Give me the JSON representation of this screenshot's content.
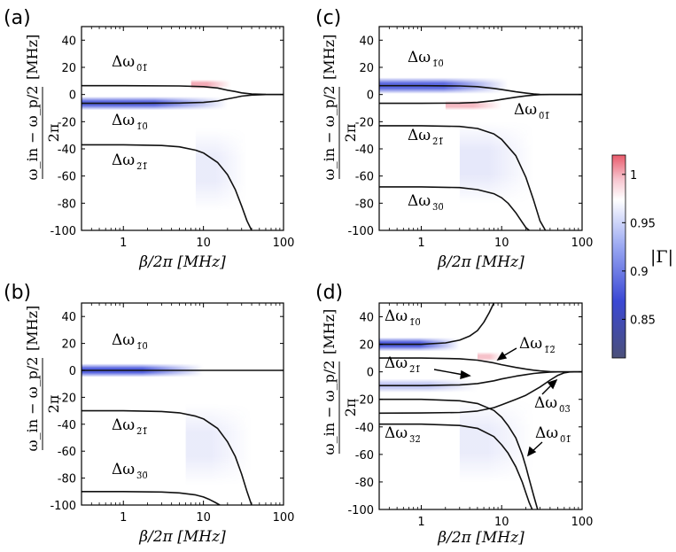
{
  "chart_data": [
    {
      "id": "a",
      "type": "heatmap",
      "panel_label": "(a)",
      "xlabel": "β/2π [MHz]",
      "ylabel_numerator": "ω_in − ω_p/2",
      "ylabel_denominator": "2π",
      "ylabel_unit": "[MHz]",
      "xscale": "log",
      "xlim": [
        0.3,
        100
      ],
      "ylim": [
        -100,
        50
      ],
      "xticks": [
        {
          "v": 1,
          "label": "1"
        },
        {
          "v": 10,
          "label": "10"
        },
        {
          "v": 100,
          "label": "100"
        }
      ],
      "yticks": [
        -100,
        -80,
        -60,
        -40,
        -20,
        0,
        20,
        40
      ],
      "curves": [
        {
          "name": "dw01",
          "x": [
            0.3,
            1,
            5,
            10,
            15,
            20,
            25,
            30,
            40,
            60,
            100
          ],
          "y": [
            6.5,
            6.5,
            6.3,
            5.8,
            4.8,
            3.2,
            2.2,
            1.2,
            0.4,
            0.05,
            0
          ]
        },
        {
          "name": "dw10",
          "x": [
            0.3,
            1,
            5,
            10,
            15,
            20,
            25,
            30,
            40,
            60,
            100
          ],
          "y": [
            -6.5,
            -6.5,
            -6.3,
            -5.8,
            -4.8,
            -3.2,
            -2.2,
            -1.2,
            -0.4,
            -0.05,
            0
          ]
        },
        {
          "name": "dw21",
          "x": [
            0.3,
            1,
            3,
            5,
            8,
            10,
            15,
            20,
            25,
            30,
            35,
            40
          ],
          "y": [
            -37,
            -37,
            -37.5,
            -38.5,
            -41,
            -43,
            -50,
            -59,
            -70,
            -82,
            -93,
            -100
          ]
        }
      ],
      "bands": [
        {
          "color": "blue",
          "x0": 0.3,
          "x1": 20,
          "y": -6.5,
          "halfwidth": 5,
          "strength": 0.8,
          "fade": 0.5
        },
        {
          "color": "blue",
          "x0": 8,
          "x1": 35,
          "y": -55,
          "halfwidth": 30,
          "strength": 0.1,
          "fade": 0.6
        },
        {
          "color": "red",
          "x0": 7,
          "x1": 22,
          "y": 7.5,
          "halfwidth": 3.5,
          "strength": 0.55,
          "fade": 0.6
        }
      ],
      "annotations": [
        {
          "base": "Δω",
          "sub": "0̃1̃"
        },
        {
          "base": "Δω",
          "sub": "1̃0̃"
        },
        {
          "base": "Δω",
          "sub": "2̃1̃"
        }
      ]
    },
    {
      "id": "b",
      "type": "heatmap",
      "panel_label": "(b)",
      "xlabel": "β/2π [MHz]",
      "ylabel_numerator": "ω_in − ω_p/2",
      "ylabel_denominator": "2π",
      "ylabel_unit": "[MHz]",
      "xscale": "log",
      "xlim": [
        0.3,
        100
      ],
      "ylim": [
        -100,
        50
      ],
      "xticks": [
        {
          "v": 1,
          "label": "1"
        },
        {
          "v": 10,
          "label": "10"
        },
        {
          "v": 100,
          "label": "100"
        }
      ],
      "yticks": [
        -100,
        -80,
        -60,
        -40,
        -20,
        0,
        20,
        40
      ],
      "curves": [
        {
          "name": "dw10",
          "x": [
            0.3,
            1,
            10,
            50,
            100
          ],
          "y": [
            0,
            0,
            0,
            0,
            0
          ]
        },
        {
          "name": "dw21",
          "x": [
            0.3,
            1,
            3,
            5,
            8,
            10,
            15,
            20,
            25,
            30,
            35,
            40
          ],
          "y": [
            -30,
            -30,
            -30.5,
            -31.5,
            -34,
            -36,
            -43,
            -53,
            -64,
            -77,
            -90,
            -100
          ]
        },
        {
          "name": "dw30",
          "x": [
            0.3,
            1,
            3,
            5,
            8,
            10,
            12,
            14,
            16
          ],
          "y": [
            -90,
            -90,
            -90.3,
            -91,
            -92.5,
            -94,
            -96,
            -98,
            -100
          ]
        }
      ],
      "bands": [
        {
          "color": "blue",
          "x0": 0.3,
          "x1": 10,
          "y": 0,
          "halfwidth": 5,
          "strength": 0.85,
          "fade": 0.5
        },
        {
          "color": "blue",
          "x0": 6,
          "x1": 40,
          "y": -55,
          "halfwidth": 30,
          "strength": 0.1,
          "fade": 0.6
        }
      ],
      "annotations": [
        {
          "base": "Δω",
          "sub": "1̃0̃"
        },
        {
          "base": "Δω",
          "sub": "2̃1̃"
        },
        {
          "base": "Δω",
          "sub": "3̃0̃"
        }
      ]
    },
    {
      "id": "c",
      "type": "heatmap",
      "panel_label": "(c)",
      "xlabel": "β/2π [MHz]",
      "ylabel_numerator": "ω_in − ω_p/2",
      "ylabel_denominator": "2π",
      "ylabel_unit": "[MHz]",
      "xscale": "log",
      "xlim": [
        0.3,
        100
      ],
      "ylim": [
        -100,
        50
      ],
      "xticks": [
        {
          "v": 1,
          "label": "1"
        },
        {
          "v": 10,
          "label": "10"
        },
        {
          "v": 100,
          "label": "100"
        }
      ],
      "yticks": [
        -100,
        -80,
        -60,
        -40,
        -20,
        0,
        20,
        40
      ],
      "curves": [
        {
          "name": "dw10",
          "x": [
            0.3,
            1,
            3,
            5,
            8,
            10,
            15,
            20,
            25,
            30,
            40,
            100
          ],
          "y": [
            6.5,
            6.5,
            6.3,
            5.8,
            4.5,
            3.6,
            2,
            1,
            0.4,
            0.1,
            0,
            0
          ]
        },
        {
          "name": "dw01",
          "x": [
            0.3,
            1,
            3,
            5,
            8,
            10,
            15,
            20,
            25,
            30,
            40,
            100
          ],
          "y": [
            -6.5,
            -6.5,
            -6.3,
            -5.8,
            -4.5,
            -3.6,
            -2,
            -1,
            -0.4,
            -0.1,
            0,
            0
          ]
        },
        {
          "name": "dw21",
          "x": [
            0.3,
            1,
            3,
            5,
            8,
            10,
            15,
            20,
            25,
            30,
            35
          ],
          "y": [
            -23,
            -23,
            -23.5,
            -25,
            -29,
            -33,
            -45,
            -61,
            -78,
            -93,
            -100
          ]
        },
        {
          "name": "dw30",
          "x": [
            0.3,
            1,
            3,
            5,
            8,
            10,
            12,
            15,
            18,
            20,
            22
          ],
          "y": [
            -68,
            -68,
            -68.5,
            -70,
            -73,
            -76,
            -80,
            -87,
            -94,
            -98,
            -100
          ]
        }
      ],
      "bands": [
        {
          "color": "blue",
          "x0": 0.3,
          "x1": 12,
          "y": 6.5,
          "halfwidth": 6,
          "strength": 0.8,
          "fade": 0.5
        },
        {
          "color": "blue",
          "x0": 3,
          "x1": 25,
          "y": -50,
          "halfwidth": 30,
          "strength": 0.12,
          "fade": 0.6
        },
        {
          "color": "red",
          "x0": 2,
          "x1": 10,
          "y": -8,
          "halfwidth": 3.5,
          "strength": 0.45,
          "fade": 0.5
        }
      ],
      "annotations": [
        {
          "base": "Δω",
          "sub": "1̃0̃"
        },
        {
          "base": "Δω",
          "sub": "0̃1̃"
        },
        {
          "base": "Δω",
          "sub": "2̃1̃"
        },
        {
          "base": "Δω",
          "sub": "3̃0̃"
        }
      ]
    },
    {
      "id": "d",
      "type": "heatmap",
      "panel_label": "(d)",
      "xlabel": "β/2π [MHz]",
      "ylabel_numerator": "ω_in − ω_p/2",
      "ylabel_denominator": "2π",
      "ylabel_unit": "[MHz]",
      "xscale": "log",
      "xlim": [
        0.3,
        100
      ],
      "ylim": [
        -100,
        50
      ],
      "xticks": [
        {
          "v": 1,
          "label": "1"
        },
        {
          "v": 10,
          "label": "10"
        },
        {
          "v": 100,
          "label": "100"
        }
      ],
      "yticks": [
        -100,
        -80,
        -60,
        -40,
        -20,
        0,
        20,
        40
      ],
      "curves": [
        {
          "name": "dw10",
          "x": [
            0.3,
            1,
            2,
            3,
            4,
            5,
            6,
            7,
            8
          ],
          "y": [
            20,
            20,
            21,
            23,
            26,
            30,
            36,
            43,
            50
          ]
        },
        {
          "name": "dw12",
          "x": [
            0.3,
            1,
            3,
            5,
            8,
            10,
            15,
            20,
            25,
            30,
            40,
            50,
            60,
            100
          ],
          "y": [
            10,
            10,
            9.5,
            8.5,
            6.5,
            5.2,
            3.2,
            2,
            1.2,
            0.7,
            0.2,
            0,
            0,
            0
          ]
        },
        {
          "name": "dw21",
          "x": [
            0.3,
            1,
            3,
            5,
            8,
            10,
            15,
            20,
            25,
            30,
            40,
            50,
            60,
            100
          ],
          "y": [
            -10,
            -10,
            -9.5,
            -8.5,
            -6.5,
            -5.2,
            -3.2,
            -2,
            -1.2,
            -0.7,
            -0.2,
            0,
            0,
            0
          ]
        },
        {
          "name": "dw03",
          "x": [
            0.3,
            1,
            3,
            5,
            8,
            10,
            15,
            20,
            30,
            40,
            50,
            60,
            70,
            80,
            100
          ],
          "y": [
            -30,
            -29.9,
            -29.5,
            -28.5,
            -26,
            -24,
            -20,
            -17,
            -11,
            -6,
            -2.5,
            -0.7,
            -0.1,
            0,
            0
          ]
        },
        {
          "name": "dw32",
          "x": [
            0.3,
            1,
            3,
            5,
            8,
            10,
            12,
            15,
            18,
            20,
            22,
            25,
            28
          ],
          "y": [
            -20,
            -20,
            -21,
            -23,
            -28,
            -33,
            -39,
            -48,
            -60,
            -69,
            -78,
            -90,
            -100
          ]
        },
        {
          "name": "dw01",
          "x": [
            0.3,
            1,
            3,
            5,
            8,
            10,
            12,
            15,
            18,
            20,
            22,
            24
          ],
          "y": [
            -38,
            -38,
            -39,
            -41,
            -47,
            -53,
            -59,
            -69,
            -80,
            -88,
            -95,
            -100
          ]
        }
      ],
      "bands": [
        {
          "color": "blue",
          "x0": 0.3,
          "x1": 3,
          "y": 20,
          "halfwidth": 5,
          "strength": 0.85,
          "fade": 0.5
        },
        {
          "color": "blue",
          "x0": 0.3,
          "x1": 5,
          "y": -10,
          "halfwidth": 5,
          "strength": 0.3,
          "fade": 0.5
        },
        {
          "color": "blue",
          "x0": 3,
          "x1": 25,
          "y": -50,
          "halfwidth": 30,
          "strength": 0.1,
          "fade": 0.6
        },
        {
          "color": "red",
          "x0": 5,
          "x1": 10,
          "y": 11,
          "halfwidth": 3.5,
          "strength": 0.4,
          "fade": 0.5
        }
      ],
      "annotations": [
        {
          "base": "Δω",
          "sub": "1̃0̃"
        },
        {
          "base": "Δω",
          "sub": "1̃2̃"
        },
        {
          "base": "Δω",
          "sub": "2̃1̃"
        },
        {
          "base": "Δω",
          "sub": "0̃3̃"
        },
        {
          "base": "Δω",
          "sub": "3̃2̃"
        },
        {
          "base": "Δω",
          "sub": "0̃1̃"
        }
      ]
    }
  ],
  "colorbar": {
    "label": "|Γ|",
    "ticks": [
      "1",
      "0.95",
      "0.9",
      "0.85"
    ],
    "tick_values": [
      1,
      0.95,
      0.9,
      0.85
    ],
    "range": [
      0.81,
      1.02
    ],
    "stops": [
      "#e85a6b",
      "#f7c5cf",
      "#ffffff",
      "#9aa8f2",
      "#3b48d4",
      "#4b5079"
    ]
  }
}
